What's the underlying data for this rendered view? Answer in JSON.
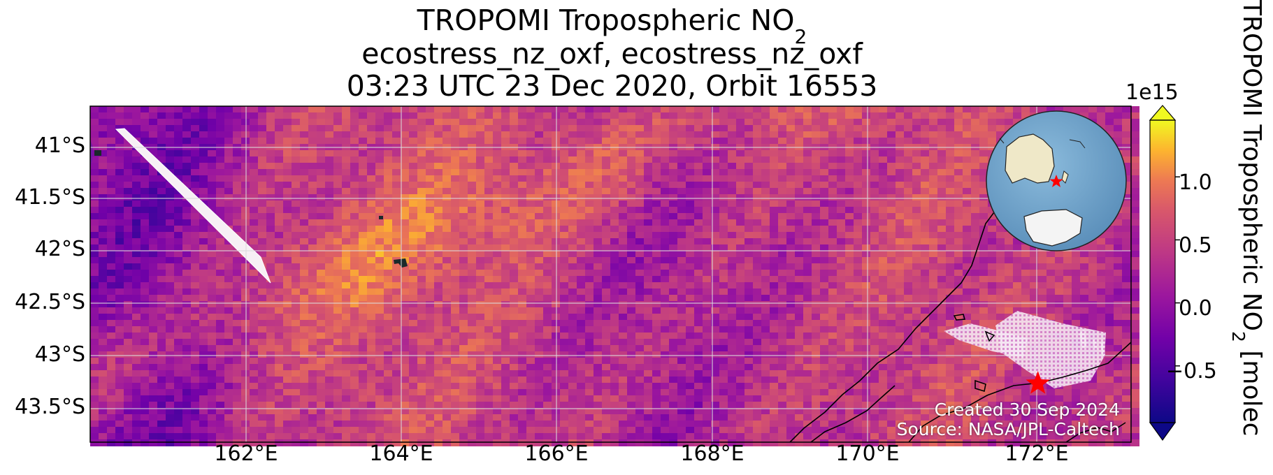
{
  "title": {
    "line1_main": "TROPOMI Tropospheric NO",
    "line1_sub": "2",
    "line2": "ecostress_nz_oxf, ecostress_nz_oxf",
    "line3": "03:23 UTC 23 Dec 2020, Orbit 16553"
  },
  "map": {
    "lat_ticks": [
      "41°S",
      "41.5°S",
      "42°S",
      "42.5°S",
      "43°S",
      "43.5°S"
    ],
    "lon_ticks": [
      "162°E",
      "164°E",
      "166°E",
      "168°E",
      "170°E",
      "172°E"
    ],
    "extent": {
      "lon_min": 160.0,
      "lon_max": 173.4,
      "lat_min": -43.83,
      "lat_max": -40.62
    },
    "target_marker": {
      "lon": 172.2,
      "lat": -43.27,
      "symbol": "star",
      "color": "#ff0000"
    },
    "locator_globe": {
      "ocean_color": "#6fa6cd",
      "land_color": "#efe8c8",
      "marker_color": "#ff0000"
    }
  },
  "credits": {
    "created": "Created 30 Sep 2024",
    "source": "Source: NASA/JPL-Caltech"
  },
  "colorbar": {
    "exponent": "1e15",
    "ticks": [
      "1.0",
      "0.5",
      "0.0",
      "−0.5"
    ],
    "tick_values": [
      1.0,
      0.5,
      0.0,
      -0.5
    ],
    "vmin": -0.95,
    "vmax": 1.45,
    "colormap": "plasma",
    "label_main": "TROPOMI Tropospheric NO",
    "label_sub": "2",
    "label_rest": " [molec"
  }
}
